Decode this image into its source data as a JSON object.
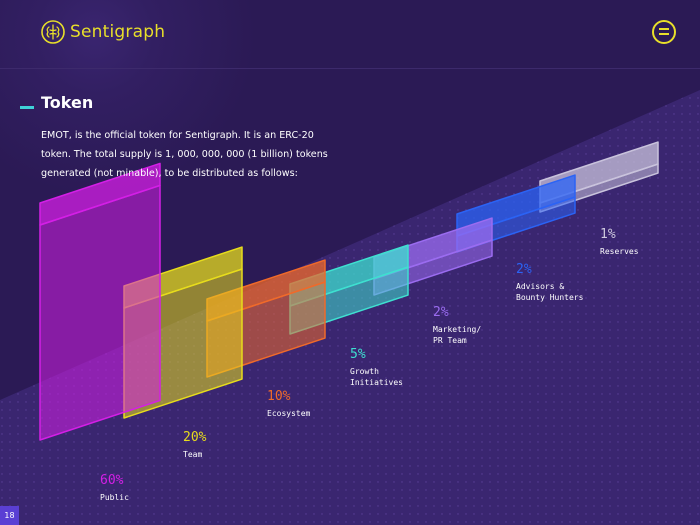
{
  "header": {
    "brand": "Sentigraph",
    "brand_color": "#e8df2a",
    "menu_icon": "hamburger-menu-icon",
    "logo_icon": "brain-logo-icon"
  },
  "section": {
    "title": "Token",
    "intro": "EMOT, is the official token for Sentigraph. It is an ERC-20 token. The total supply is 1, 000, 000, 000 (1 billion) tokens generated (not minable), to be distributed as follows:"
  },
  "chart_data": {
    "type": "bar",
    "categories": [
      [
        "Public"
      ],
      [
        "Team"
      ],
      [
        "Ecosystem"
      ],
      [
        "Growth",
        "Initiatives"
      ],
      [
        "Marketing/",
        "PR Team"
      ],
      [
        "Advisors &",
        "Bounty Hunters"
      ],
      [
        "Reserves"
      ]
    ],
    "values": [
      60,
      20,
      10,
      5,
      2,
      2,
      1
    ],
    "labels": [
      "60%",
      "20%",
      "10%",
      "5%",
      "2%",
      "2%",
      "1%"
    ],
    "colors": [
      "#d41fe6",
      "#e7dc1c",
      "#f06a2a",
      "#3ee0d0",
      "#9b6cf0",
      "#2b63f5",
      "#c9c3dc"
    ]
  },
  "footer": {
    "page_number": "18"
  }
}
